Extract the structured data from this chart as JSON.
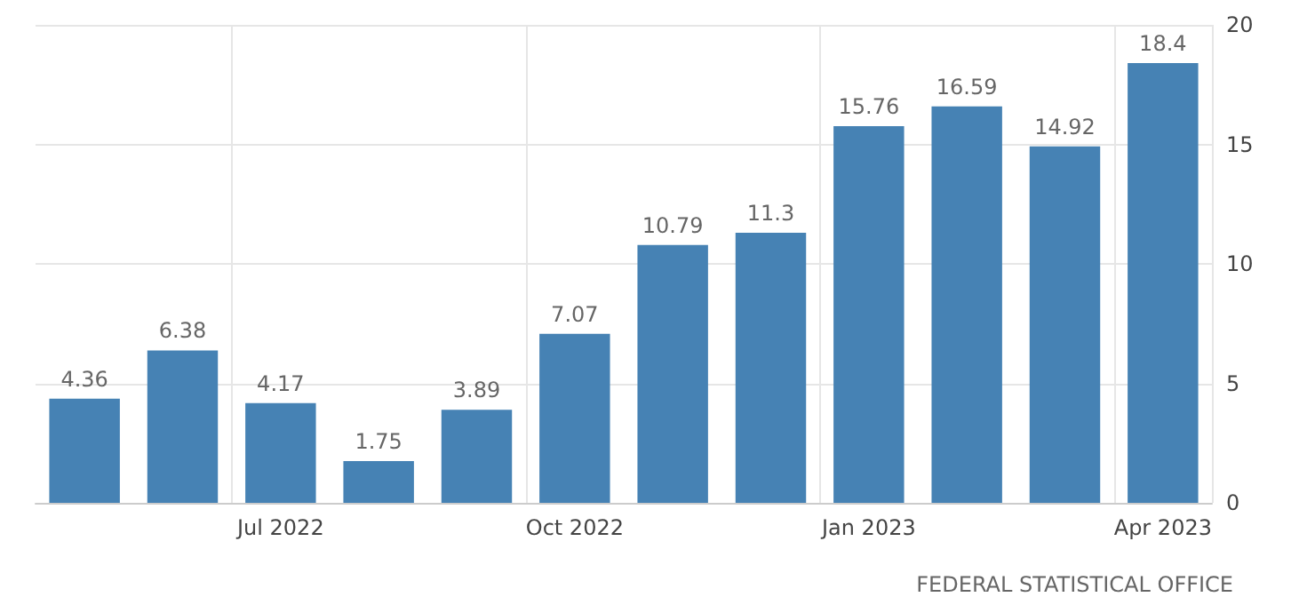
{
  "chart_data": {
    "type": "bar",
    "categories": [
      null,
      null,
      "Jul 2022",
      null,
      null,
      "Oct 2022",
      null,
      null,
      "Jan 2023",
      null,
      null,
      "Apr 2023"
    ],
    "values": [
      4.36,
      6.38,
      4.17,
      1.75,
      3.89,
      7.07,
      10.79,
      11.3,
      15.76,
      16.59,
      14.92,
      18.4
    ],
    "color": "#4682b4",
    "ylim": [
      0,
      20
    ],
    "yticks": [
      0,
      5,
      10,
      15,
      20
    ],
    "grid": true,
    "data_labels": true,
    "annotations": [
      "FEDERAL STATISTICAL OFFICE"
    ]
  }
}
